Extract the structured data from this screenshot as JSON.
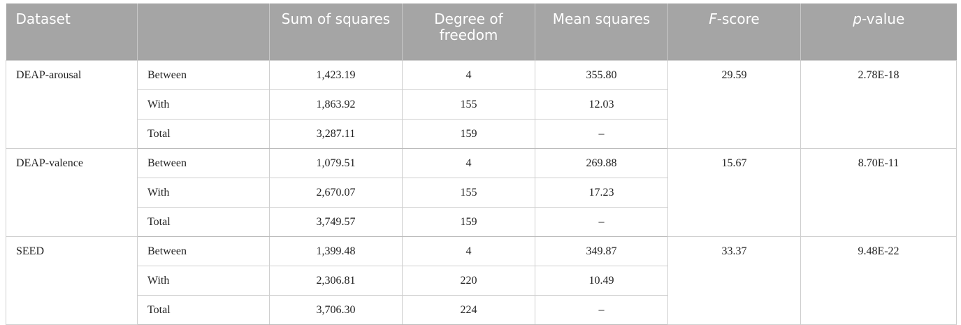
{
  "table": {
    "header": [
      "Dataset",
      "Sum of squares",
      "Degree of freedom",
      "Mean squares",
      "F-score",
      "p-value"
    ],
    "groups": [
      {
        "dataset": "DEAP-arousal",
        "f_score": "29.59",
        "p_value": "2.78E-18",
        "rows": [
          [
            "Between",
            "1,423.19",
            "4",
            "355.80"
          ],
          [
            "With",
            "1,863.92",
            "155",
            "12.03"
          ],
          [
            "Total",
            "3,287.11",
            "159",
            "–"
          ]
        ]
      },
      {
        "dataset": "DEAP-valence",
        "f_score": "15.67",
        "p_value": "8.70E-11",
        "rows": [
          [
            "Between",
            "1,079.51",
            "4",
            "269.88"
          ],
          [
            "With",
            "2,670.07",
            "155",
            "17.23"
          ],
          [
            "Total",
            "3,749.57",
            "159",
            "–"
          ]
        ]
      },
      {
        "dataset": "SEED",
        "f_score": "33.37",
        "p_value": "9.48E-22",
        "rows": [
          [
            "Between",
            "1,399.48",
            "4",
            "349.87"
          ],
          [
            "With",
            "2,306.81",
            "220",
            "10.49"
          ],
          [
            "Total",
            "3,706.30",
            "224",
            "–"
          ]
        ]
      }
    ]
  }
}
